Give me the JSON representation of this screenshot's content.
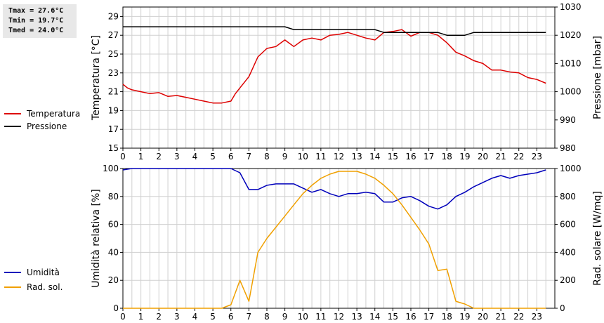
{
  "stats": {
    "tmax": "Tmax = 27.6°C",
    "tmin": "Tmin = 19.7°C",
    "tmed": "Tmed = 24.0°C"
  },
  "colors": {
    "temperature": "#dd0000",
    "pressure": "#000000",
    "humidity": "#0000bb",
    "solar": "#f0a000",
    "grid": "#d0d0d0"
  },
  "chart_data": [
    {
      "type": "line",
      "ylabel": "Temperatura [°C]",
      "y2label": "Pressione [mbar]",
      "xlim": [
        0,
        24
      ],
      "ylim": [
        15,
        30
      ],
      "y2lim": [
        980,
        1030
      ],
      "xticks": [
        0,
        1,
        2,
        3,
        4,
        5,
        6,
        7,
        8,
        9,
        10,
        11,
        12,
        13,
        14,
        15,
        16,
        17,
        18,
        19,
        20,
        21,
        22,
        23
      ],
      "yticks": [
        15,
        17,
        19,
        21,
        23,
        25,
        27,
        29
      ],
      "y2ticks": [
        980,
        990,
        1000,
        1010,
        1020,
        1030
      ],
      "grid": true,
      "legend_position": "left",
      "series": [
        {
          "name": "Temperatura",
          "axis": "left",
          "x": [
            0,
            0.25,
            0.5,
            1,
            1.5,
            2,
            2.25,
            2.5,
            3,
            3.5,
            4,
            4.5,
            5,
            5.5,
            6,
            6.25,
            6.5,
            7,
            7.5,
            8,
            8.5,
            9,
            9.5,
            10,
            10.5,
            11,
            11.5,
            12,
            12.5,
            13,
            13.5,
            14,
            14.5,
            15,
            15.5,
            16,
            16.5,
            17,
            17.5,
            18,
            18.5,
            19,
            19.5,
            20,
            20.5,
            21,
            21.5,
            22,
            22.5,
            23,
            23.5
          ],
          "y": [
            21.8,
            21.4,
            21.2,
            21.0,
            20.8,
            20.9,
            20.7,
            20.5,
            20.6,
            20.4,
            20.2,
            20.0,
            19.8,
            19.8,
            20.0,
            20.8,
            21.4,
            22.6,
            24.7,
            25.6,
            25.8,
            26.5,
            25.8,
            26.5,
            26.7,
            26.5,
            27.0,
            27.1,
            27.3,
            27.0,
            26.7,
            26.5,
            27.3,
            27.4,
            27.6,
            26.9,
            27.3,
            27.3,
            27.0,
            26.2,
            25.2,
            24.8,
            24.3,
            24.0,
            23.3,
            23.3,
            23.1,
            23.0,
            22.5,
            22.3,
            21.9
          ]
        },
        {
          "name": "Pressione",
          "axis": "right",
          "x": [
            0,
            9,
            9.5,
            14,
            14.5,
            17.5,
            18,
            19,
            19.5,
            23.5
          ],
          "y": [
            1023,
            1023,
            1022,
            1022,
            1021,
            1021,
            1020,
            1020,
            1021,
            1021
          ]
        }
      ]
    },
    {
      "type": "line",
      "ylabel": "Umidità relativa [%]",
      "y2label": "Rad. solare [W/mq]",
      "xlim": [
        0,
        24
      ],
      "ylim": [
        0,
        100
      ],
      "y2lim": [
        0,
        1000
      ],
      "xticks": [
        0,
        1,
        2,
        3,
        4,
        5,
        6,
        7,
        8,
        9,
        10,
        11,
        12,
        13,
        14,
        15,
        16,
        17,
        18,
        19,
        20,
        21,
        22,
        23
      ],
      "yticks": [
        0,
        20,
        40,
        60,
        80,
        100
      ],
      "y2ticks": [
        0,
        200,
        400,
        600,
        800,
        1000
      ],
      "grid": true,
      "legend_position": "left",
      "series": [
        {
          "name": "Umidità",
          "axis": "left",
          "x": [
            0,
            0.5,
            1,
            6,
            6.5,
            7,
            7.5,
            8,
            8.5,
            9,
            9.5,
            10,
            10.5,
            11,
            11.5,
            12,
            12.5,
            13,
            13.5,
            14,
            14.5,
            15,
            15.5,
            16,
            16.5,
            17,
            17.5,
            18,
            18.5,
            19,
            19.5,
            20,
            20.5,
            21,
            21.5,
            22,
            22.5,
            23,
            23.5
          ],
          "y": [
            99,
            100,
            100,
            100,
            97,
            85,
            85,
            88,
            89,
            89,
            89,
            86,
            83,
            85,
            82,
            80,
            82,
            82,
            83,
            82,
            76,
            76,
            79,
            80,
            77,
            73,
            71,
            74,
            80,
            83,
            87,
            90,
            93,
            95,
            93,
            95,
            96,
            97,
            99
          ]
        },
        {
          "name": "Rad. sol.",
          "axis": "right",
          "x": [
            0,
            5.5,
            6,
            6.5,
            7,
            7.5,
            8,
            8.5,
            9,
            9.5,
            10,
            10.5,
            11,
            11.5,
            12,
            12.5,
            13,
            13.5,
            14,
            14.5,
            15,
            15.5,
            16,
            16.5,
            17,
            17.5,
            18,
            18.5,
            19,
            19.5,
            23.5
          ],
          "y": [
            0,
            0,
            25,
            200,
            50,
            400,
            500,
            580,
            660,
            740,
            820,
            880,
            930,
            960,
            980,
            980,
            980,
            960,
            930,
            880,
            820,
            740,
            650,
            560,
            460,
            270,
            280,
            50,
            30,
            0,
            0
          ]
        }
      ]
    }
  ]
}
